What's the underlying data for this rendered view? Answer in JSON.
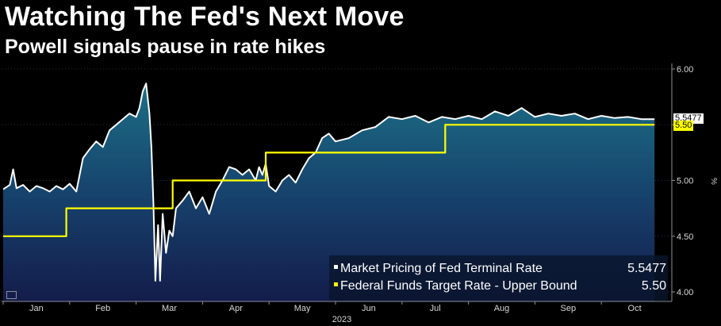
{
  "title": "Watching The Fed's Next Move",
  "subtitle": "Powell signals pause in rate hikes",
  "chart_data": {
    "type": "line",
    "title": "Watching The Fed's Next Move",
    "subtitle": "Powell signals pause in rate hikes",
    "xlabel": "2023",
    "ylabel": "%",
    "ylim": [
      4.0,
      6.0
    ],
    "yticks": [
      "6.00",
      "5.50",
      "5.00",
      "4.50",
      "4.00"
    ],
    "xticks": [
      "Jan",
      "Feb",
      "Mar",
      "Apr",
      "May",
      "Jun",
      "Jul",
      "Aug",
      "Sep",
      "Oct"
    ],
    "xlim": [
      0,
      10.0
    ],
    "legend_position": "bottom-right",
    "series": [
      {
        "name": "Market Pricing of Fed Terminal Rate",
        "last_value": "5.5477",
        "color": "#ffffff",
        "area_fill": true,
        "points": [
          [
            0.0,
            4.92
          ],
          [
            0.1,
            4.96
          ],
          [
            0.15,
            5.1
          ],
          [
            0.2,
            4.93
          ],
          [
            0.3,
            4.96
          ],
          [
            0.4,
            4.9
          ],
          [
            0.5,
            4.95
          ],
          [
            0.6,
            4.93
          ],
          [
            0.7,
            4.9
          ],
          [
            0.8,
            4.95
          ],
          [
            0.9,
            4.92
          ],
          [
            1.0,
            4.97
          ],
          [
            1.1,
            4.9
          ],
          [
            1.2,
            5.2
          ],
          [
            1.3,
            5.28
          ],
          [
            1.4,
            5.35
          ],
          [
            1.5,
            5.3
          ],
          [
            1.6,
            5.45
          ],
          [
            1.7,
            5.5
          ],
          [
            1.8,
            5.55
          ],
          [
            1.9,
            5.6
          ],
          [
            2.0,
            5.57
          ],
          [
            2.05,
            5.65
          ],
          [
            2.1,
            5.8
          ],
          [
            2.15,
            5.87
          ],
          [
            2.2,
            5.6
          ],
          [
            2.23,
            5.3
          ],
          [
            2.26,
            4.8
          ],
          [
            2.29,
            4.1
          ],
          [
            2.33,
            4.6
          ],
          [
            2.36,
            4.1
          ],
          [
            2.4,
            4.7
          ],
          [
            2.45,
            4.35
          ],
          [
            2.5,
            4.55
          ],
          [
            2.55,
            4.5
          ],
          [
            2.6,
            4.75
          ],
          [
            2.7,
            4.82
          ],
          [
            2.8,
            4.9
          ],
          [
            2.9,
            4.75
          ],
          [
            3.0,
            4.85
          ],
          [
            3.1,
            4.7
          ],
          [
            3.2,
            4.9
          ],
          [
            3.3,
            5.0
          ],
          [
            3.4,
            5.12
          ],
          [
            3.5,
            5.1
          ],
          [
            3.6,
            5.05
          ],
          [
            3.7,
            5.1
          ],
          [
            3.8,
            5.0
          ],
          [
            3.85,
            5.12
          ],
          [
            3.9,
            5.05
          ],
          [
            3.95,
            5.15
          ],
          [
            4.0,
            4.95
          ],
          [
            4.1,
            4.9
          ],
          [
            4.2,
            5.0
          ],
          [
            4.3,
            5.05
          ],
          [
            4.4,
            4.98
          ],
          [
            4.5,
            5.1
          ],
          [
            4.6,
            5.2
          ],
          [
            4.7,
            5.25
          ],
          [
            4.8,
            5.38
          ],
          [
            4.9,
            5.42
          ],
          [
            5.0,
            5.35
          ],
          [
            5.2,
            5.38
          ],
          [
            5.4,
            5.45
          ],
          [
            5.6,
            5.48
          ],
          [
            5.8,
            5.57
          ],
          [
            6.0,
            5.55
          ],
          [
            6.2,
            5.58
          ],
          [
            6.4,
            5.52
          ],
          [
            6.6,
            5.57
          ],
          [
            6.8,
            5.55
          ],
          [
            7.0,
            5.58
          ],
          [
            7.2,
            5.55
          ],
          [
            7.4,
            5.62
          ],
          [
            7.6,
            5.58
          ],
          [
            7.8,
            5.65
          ],
          [
            8.0,
            5.57
          ],
          [
            8.2,
            5.6
          ],
          [
            8.4,
            5.58
          ],
          [
            8.6,
            5.6
          ],
          [
            8.8,
            5.55
          ],
          [
            9.0,
            5.58
          ],
          [
            9.2,
            5.56
          ],
          [
            9.4,
            5.57
          ],
          [
            9.6,
            5.55
          ],
          [
            9.8,
            5.55
          ]
        ]
      },
      {
        "name": "Federal Funds Target Rate - Upper Bound",
        "last_value": "5.50",
        "color": "#ffff00",
        "points": [
          [
            0.0,
            4.5
          ],
          [
            0.95,
            4.5
          ],
          [
            0.95,
            4.75
          ],
          [
            2.55,
            4.75
          ],
          [
            2.55,
            5.0
          ],
          [
            3.95,
            5.0
          ],
          [
            3.95,
            5.25
          ],
          [
            6.65,
            5.25
          ],
          [
            6.65,
            5.5
          ],
          [
            9.8,
            5.5
          ]
        ]
      }
    ]
  }
}
